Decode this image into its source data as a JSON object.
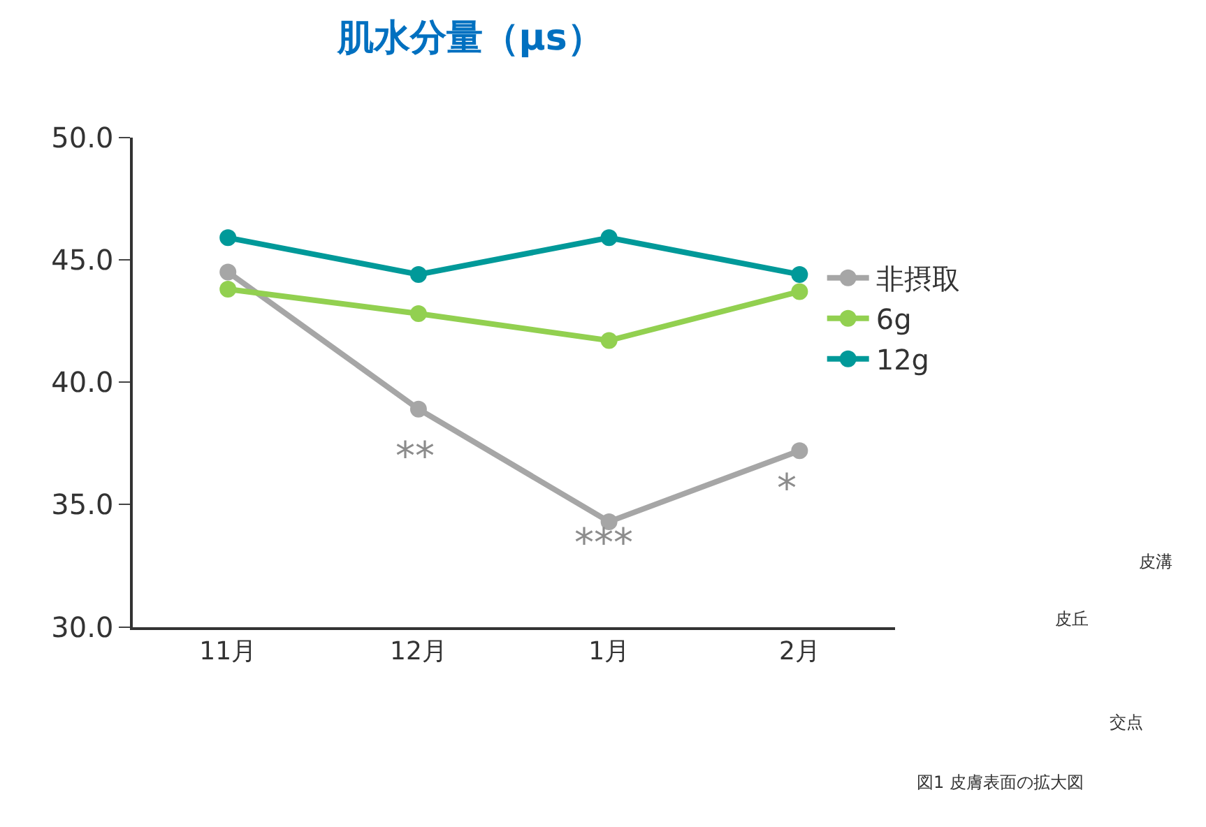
{
  "chart_data": {
    "type": "line",
    "title": "肌水分量（μs）",
    "categories": [
      "11月",
      "12月",
      "1月",
      "2月"
    ],
    "series": [
      {
        "name": "非摂取",
        "color": "#a6a6a6",
        "values": [
          44.5,
          38.9,
          34.3,
          37.2
        ]
      },
      {
        "name": "6g",
        "color": "#92d050",
        "values": [
          43.8,
          42.8,
          41.7,
          43.7
        ]
      },
      {
        "name": "12g",
        "color": "#009999",
        "values": [
          45.9,
          44.4,
          45.9,
          44.4
        ]
      }
    ],
    "ylim": [
      30,
      50
    ],
    "yticks": [
      {
        "value": 30,
        "label": "30.0"
      },
      {
        "value": 35,
        "label": "35.0"
      },
      {
        "value": 40,
        "label": "40.0"
      },
      {
        "value": 45,
        "label": "45.0"
      },
      {
        "value": 50,
        "label": "50.0"
      }
    ],
    "legend": "right",
    "marker": "circle",
    "line_style": "solid",
    "annotations": [
      "**",
      "***",
      "*",
      "皮溝",
      "皮丘",
      "交点",
      "図1 皮膚表面の拡大図"
    ]
  }
}
